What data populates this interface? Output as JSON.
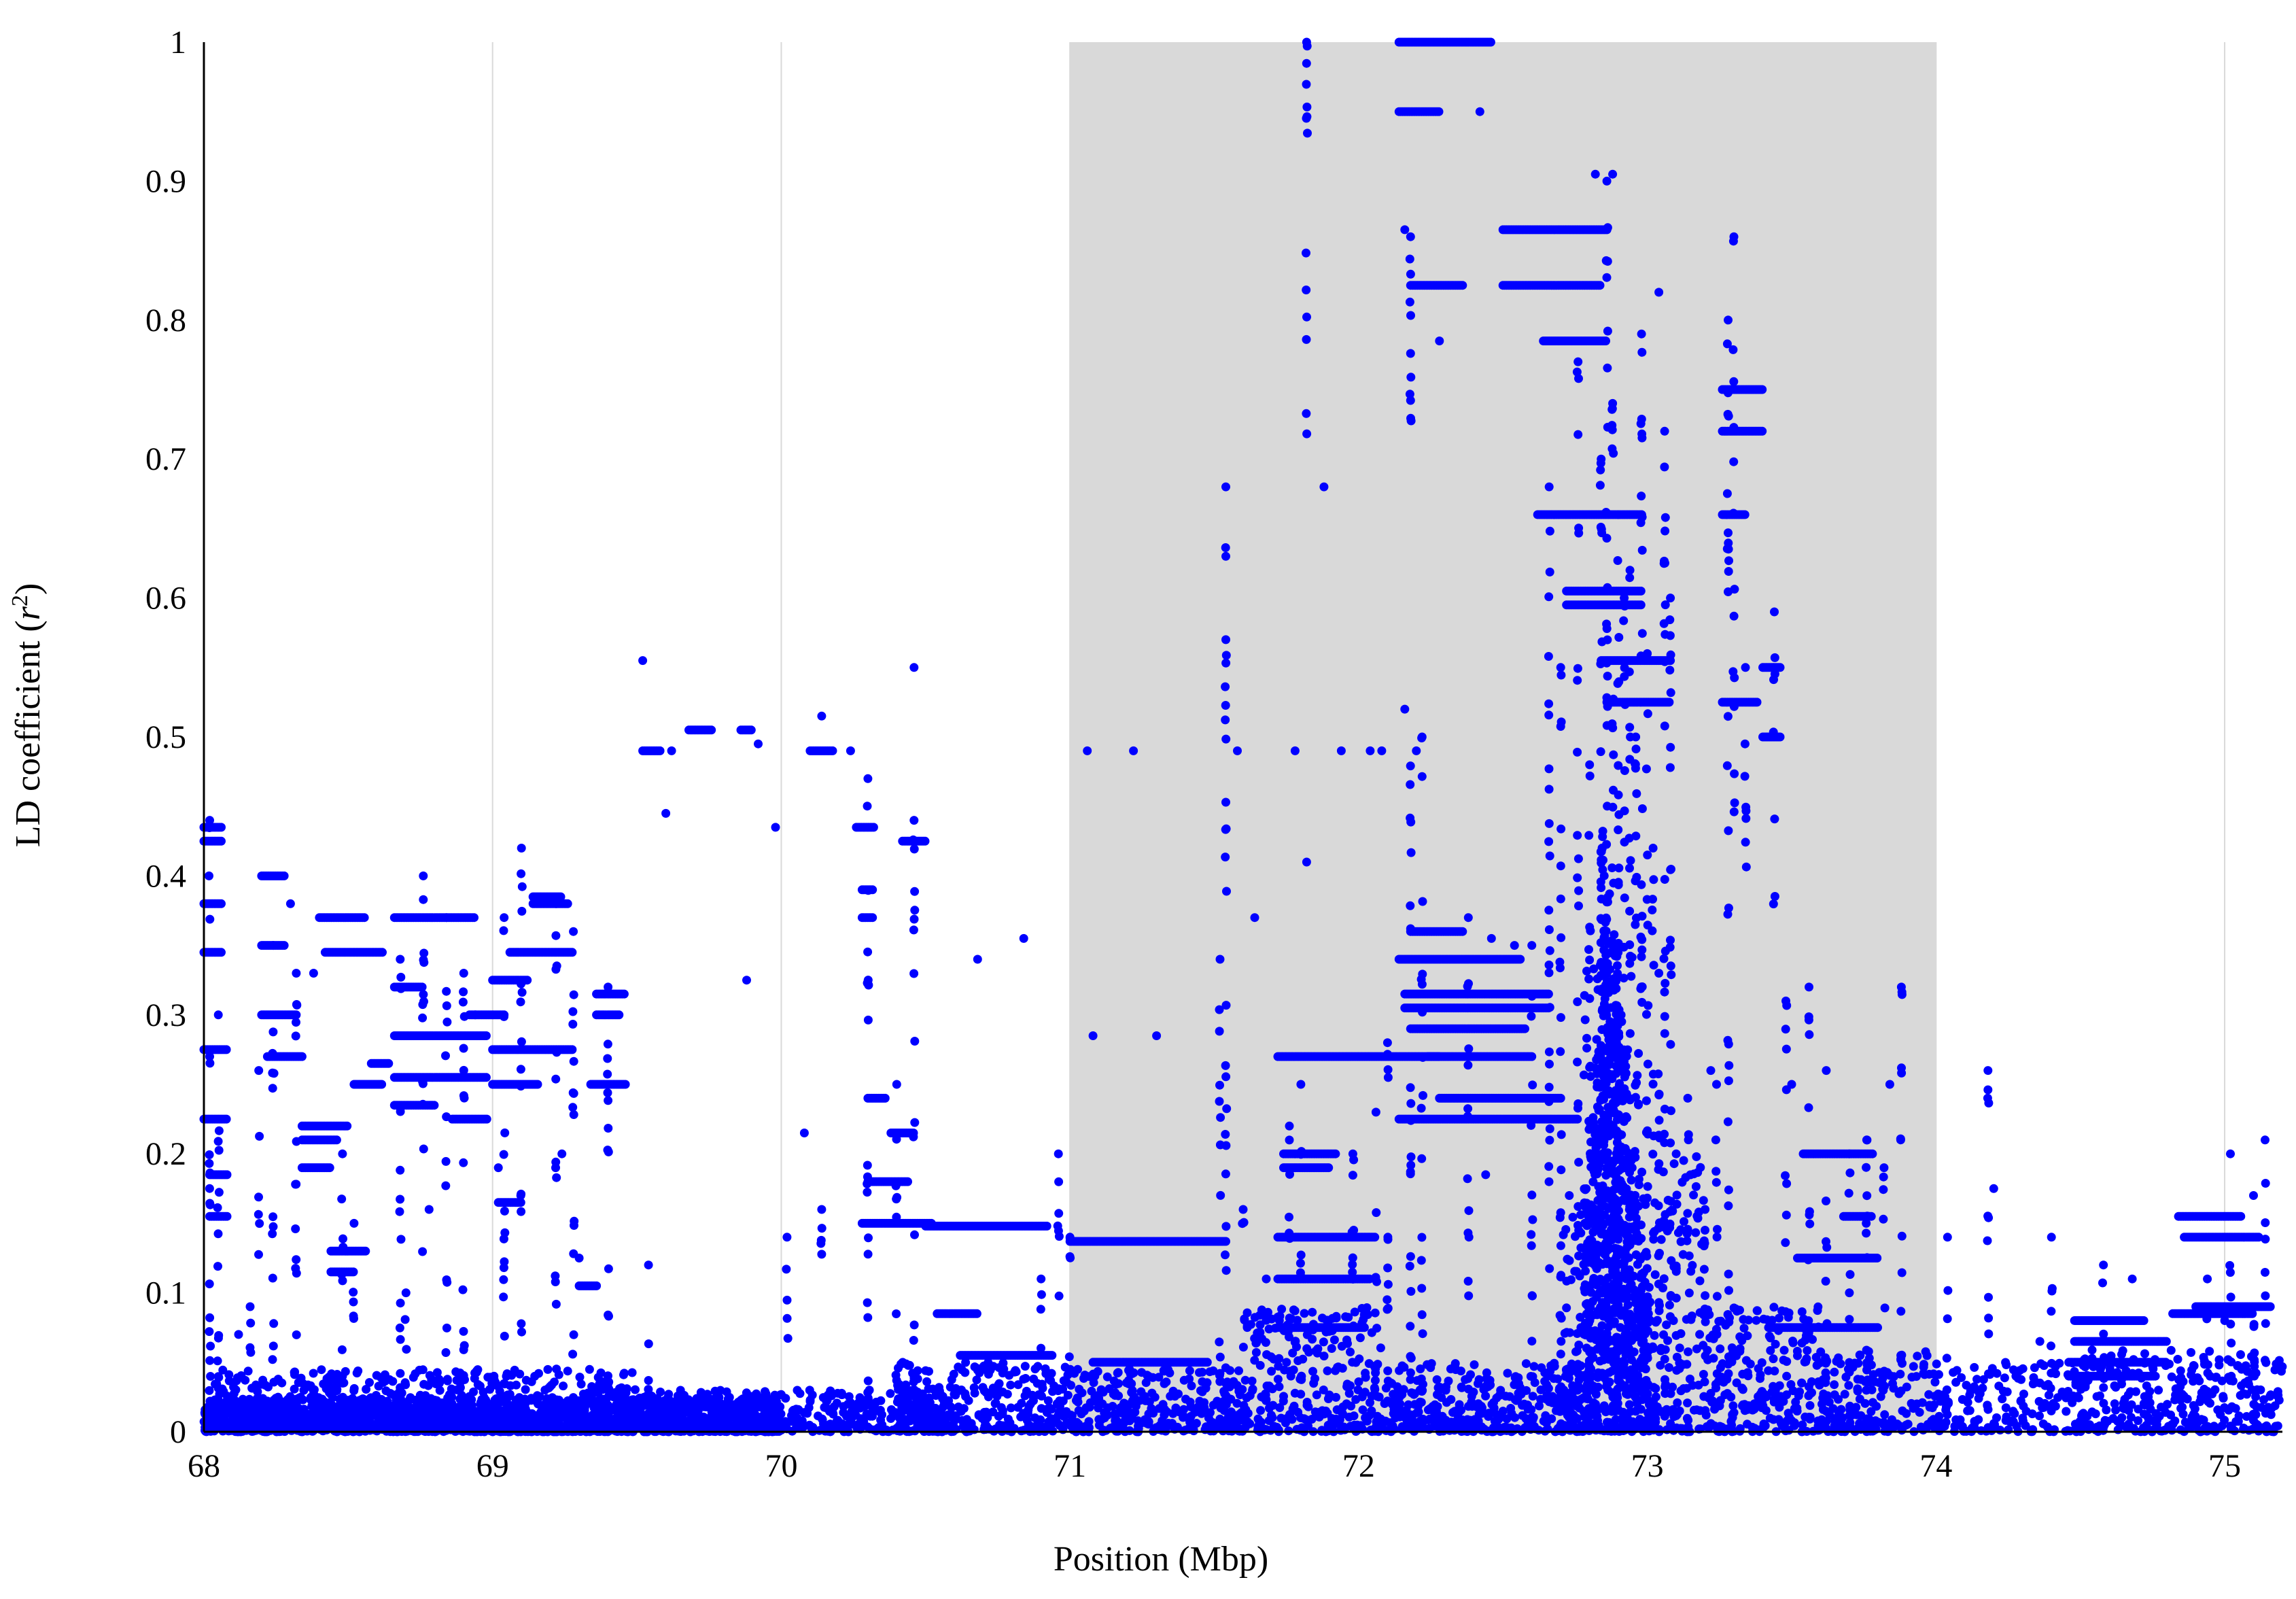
{
  "chart_data": {
    "type": "scatter",
    "xlabel": "Position (Mbp)",
    "ylabel_main": "LD coefficient (",
    "ylabel_var": "r",
    "ylabel_sup": "2",
    "ylabel_close": ")",
    "xlim": [
      68,
      75.2
    ],
    "ylim": [
      0,
      1
    ],
    "x_ticks": [
      "68",
      "69",
      "70",
      "71",
      "72",
      "73",
      "74",
      "75"
    ],
    "y_ticks": [
      "0",
      "0.1",
      "0.2",
      "0.3",
      "0.4",
      "0.5",
      "0.6",
      "0.7",
      "0.8",
      "0.9",
      "1"
    ],
    "grid": "vertical",
    "legend": "none",
    "highlight_region": {
      "x_start": 71,
      "x_end": 74,
      "color": "#d9d9d9"
    },
    "marker_color": "#0000ff",
    "gridline_color": "#d9d9d9",
    "runs": [
      [
        68.0,
        68.06,
        0.435
      ],
      [
        68.0,
        68.06,
        0.425
      ],
      [
        68.0,
        68.06,
        0.38
      ],
      [
        68.0,
        68.06,
        0.345
      ],
      [
        68.0,
        68.08,
        0.275
      ],
      [
        68.0,
        68.08,
        0.225
      ],
      [
        68.02,
        68.08,
        0.185
      ],
      [
        68.02,
        68.08,
        0.155
      ],
      [
        68.2,
        68.28,
        0.4
      ],
      [
        68.2,
        68.28,
        0.35
      ],
      [
        68.2,
        68.32,
        0.3
      ],
      [
        68.22,
        68.34,
        0.27
      ],
      [
        68.34,
        68.5,
        0.22
      ],
      [
        68.34,
        68.46,
        0.21
      ],
      [
        68.34,
        68.44,
        0.19
      ],
      [
        68.4,
        68.56,
        0.37
      ],
      [
        68.42,
        68.62,
        0.345
      ],
      [
        68.44,
        68.56,
        0.13
      ],
      [
        68.44,
        68.52,
        0.115
      ],
      [
        68.52,
        68.62,
        0.25
      ],
      [
        68.58,
        68.64,
        0.265
      ],
      [
        68.66,
        68.94,
        0.37
      ],
      [
        68.66,
        68.76,
        0.32
      ],
      [
        68.66,
        68.98,
        0.285
      ],
      [
        68.66,
        68.98,
        0.255
      ],
      [
        68.66,
        68.8,
        0.235
      ],
      [
        68.86,
        68.98,
        0.225
      ],
      [
        68.92,
        69.04,
        0.3
      ],
      [
        69.02,
        69.1,
        0.165
      ],
      [
        69.0,
        69.12,
        0.325
      ],
      [
        69.0,
        69.28,
        0.275
      ],
      [
        69.0,
        69.16,
        0.25
      ],
      [
        69.06,
        69.28,
        0.345
      ],
      [
        69.14,
        69.24,
        0.385
      ],
      [
        69.14,
        69.26,
        0.38
      ],
      [
        69.36,
        69.46,
        0.315
      ],
      [
        69.36,
        69.44,
        0.3
      ],
      [
        69.34,
        69.46,
        0.25
      ],
      [
        69.3,
        69.36,
        0.105
      ],
      [
        69.52,
        69.58,
        0.49
      ],
      [
        69.68,
        69.76,
        0.505
      ],
      [
        69.86,
        69.9,
        0.505
      ],
      [
        70.1,
        70.18,
        0.49
      ],
      [
        70.26,
        70.32,
        0.435
      ],
      [
        70.28,
        70.32,
        0.39
      ],
      [
        70.28,
        70.32,
        0.37
      ],
      [
        70.42,
        70.5,
        0.425
      ],
      [
        70.3,
        70.36,
        0.24
      ],
      [
        70.38,
        70.46,
        0.215
      ],
      [
        70.3,
        70.44,
        0.18
      ],
      [
        70.28,
        70.52,
        0.15
      ],
      [
        70.5,
        70.92,
        0.148
      ],
      [
        70.54,
        70.68,
        0.085
      ],
      [
        70.62,
        70.94,
        0.055
      ],
      [
        71.0,
        71.54,
        0.137
      ],
      [
        71.08,
        71.48,
        0.05
      ],
      [
        71.72,
        72.28,
        0.27
      ],
      [
        71.74,
        71.92,
        0.2
      ],
      [
        71.74,
        71.9,
        0.19
      ],
      [
        71.72,
        72.06,
        0.14
      ],
      [
        71.72,
        72.04,
        0.11
      ],
      [
        71.72,
        72.02,
        0.075
      ],
      [
        72.14,
        72.46,
        1.0
      ],
      [
        72.14,
        72.28,
        0.95
      ],
      [
        72.18,
        72.36,
        0.825
      ],
      [
        72.18,
        72.36,
        0.36
      ],
      [
        72.14,
        72.56,
        0.34
      ],
      [
        72.16,
        72.66,
        0.315
      ],
      [
        72.16,
        72.66,
        0.305
      ],
      [
        72.18,
        72.58,
        0.29
      ],
      [
        72.24,
        72.6,
        0.27
      ],
      [
        72.28,
        72.7,
        0.24
      ],
      [
        72.14,
        72.76,
        0.225
      ],
      [
        72.5,
        72.86,
        0.865
      ],
      [
        72.5,
        72.84,
        0.825
      ],
      [
        72.64,
        72.86,
        0.785
      ],
      [
        72.62,
        72.98,
        0.66
      ],
      [
        72.72,
        72.98,
        0.605
      ],
      [
        72.72,
        72.98,
        0.595
      ],
      [
        72.84,
        73.08,
        0.555
      ],
      [
        72.86,
        73.08,
        0.525
      ],
      [
        73.26,
        73.4,
        0.75
      ],
      [
        73.26,
        73.4,
        0.72
      ],
      [
        73.26,
        73.34,
        0.66
      ],
      [
        73.26,
        73.38,
        0.525
      ],
      [
        73.4,
        73.46,
        0.55
      ],
      [
        73.4,
        73.46,
        0.5
      ],
      [
        73.54,
        73.78,
        0.2
      ],
      [
        73.68,
        73.78,
        0.155
      ],
      [
        73.52,
        73.8,
        0.125
      ],
      [
        73.42,
        73.8,
        0.075
      ],
      [
        74.48,
        74.72,
        0.08
      ],
      [
        74.48,
        74.8,
        0.065
      ],
      [
        74.46,
        74.8,
        0.05
      ],
      [
        74.46,
        74.76,
        0.04
      ],
      [
        74.82,
        75.1,
        0.085
      ],
      [
        74.84,
        75.06,
        0.155
      ],
      [
        74.86,
        75.12,
        0.14
      ],
      [
        74.9,
        75.16,
        0.09
      ]
    ],
    "columns": [
      [
        68.02,
        0.0,
        0.44
      ],
      [
        68.05,
        0.0,
        0.3
      ],
      [
        68.16,
        0.0,
        0.09
      ],
      [
        68.19,
        0.12,
        0.26
      ],
      [
        68.24,
        0.0,
        0.35
      ],
      [
        68.32,
        0.0,
        0.33
      ],
      [
        68.48,
        0.0,
        0.2
      ],
      [
        68.52,
        0.0,
        0.15
      ],
      [
        68.68,
        0.0,
        0.34
      ],
      [
        68.7,
        0.0,
        0.1
      ],
      [
        68.76,
        0.0,
        0.4
      ],
      [
        68.84,
        0.0,
        0.37
      ],
      [
        68.9,
        0.0,
        0.33
      ],
      [
        69.04,
        0.0,
        0.37
      ],
      [
        69.1,
        0.0,
        0.42
      ],
      [
        69.22,
        0.0,
        0.38
      ],
      [
        69.28,
        0.0,
        0.36
      ],
      [
        69.4,
        0.0,
        0.32
      ],
      [
        69.54,
        0.0,
        0.12
      ],
      [
        70.02,
        0.0,
        0.14
      ],
      [
        70.14,
        0.0,
        0.16
      ],
      [
        70.3,
        0.0,
        0.47
      ],
      [
        70.4,
        0.0,
        0.25
      ],
      [
        70.46,
        0.0,
        0.44
      ],
      [
        70.9,
        0.0,
        0.11
      ],
      [
        70.96,
        0.0,
        0.2
      ],
      [
        71.0,
        0.0,
        0.14
      ],
      [
        71.52,
        0.0,
        0.34
      ],
      [
        71.54,
        0.0,
        0.68
      ],
      [
        71.6,
        0.0,
        0.16
      ],
      [
        71.68,
        0.0,
        0.11
      ],
      [
        71.76,
        0.0,
        0.22
      ],
      [
        71.8,
        0.0,
        0.25
      ],
      [
        71.82,
        0.65,
        1.0
      ],
      [
        71.98,
        0.0,
        0.2
      ],
      [
        72.06,
        0.0,
        0.23
      ],
      [
        72.1,
        0.0,
        0.28
      ],
      [
        72.18,
        0.0,
        0.86
      ],
      [
        72.22,
        0.0,
        0.5
      ],
      [
        72.38,
        0.0,
        0.37
      ],
      [
        72.6,
        0.0,
        0.35
      ],
      [
        72.66,
        0.0,
        0.68
      ],
      [
        72.7,
        0.0,
        0.55
      ],
      [
        72.76,
        0.0,
        0.77
      ],
      [
        72.8,
        0.0,
        0.48
      ],
      [
        72.84,
        0.0,
        0.7
      ],
      [
        72.86,
        0.0,
        0.9
      ],
      [
        72.88,
        0.0,
        0.74
      ],
      [
        72.9,
        0.0,
        0.66
      ],
      [
        72.92,
        0.0,
        0.6
      ],
      [
        72.94,
        0.0,
        0.62
      ],
      [
        72.96,
        0.0,
        0.5
      ],
      [
        72.98,
        0.0,
        0.79
      ],
      [
        73.0,
        0.0,
        0.56
      ],
      [
        73.02,
        0.0,
        0.42
      ],
      [
        73.04,
        0.0,
        0.33
      ],
      [
        73.06,
        0.0,
        0.72
      ],
      [
        73.08,
        0.0,
        0.6
      ],
      [
        73.1,
        0.0,
        0.2
      ],
      [
        73.14,
        0.0,
        0.24
      ],
      [
        73.2,
        0.0,
        0.16
      ],
      [
        73.24,
        0.0,
        0.25
      ],
      [
        73.28,
        0.0,
        0.8
      ],
      [
        73.3,
        0.44,
        0.86
      ],
      [
        73.34,
        0.37,
        0.55
      ],
      [
        73.44,
        0.37,
        0.59
      ],
      [
        73.48,
        0.0,
        0.31
      ],
      [
        73.56,
        0.0,
        0.32
      ],
      [
        73.62,
        0.0,
        0.26
      ],
      [
        73.7,
        0.0,
        0.2
      ],
      [
        73.76,
        0.0,
        0.21
      ],
      [
        73.82,
        0.0,
        0.19
      ],
      [
        73.88,
        0.0,
        0.32
      ],
      [
        74.04,
        0.0,
        0.14
      ],
      [
        74.18,
        0.0,
        0.26
      ],
      [
        74.4,
        0.0,
        0.14
      ],
      [
        74.58,
        0.0,
        0.12
      ],
      [
        74.94,
        0.0,
        0.11
      ],
      [
        75.02,
        0.0,
        0.2
      ],
      [
        75.1,
        0.0,
        0.17
      ],
      [
        75.14,
        0.0,
        0.21
      ]
    ],
    "isolated": [
      [
        68.02,
        0.27
      ],
      [
        68.12,
        0.07
      ],
      [
        68.3,
        0.38
      ],
      [
        68.38,
        0.33
      ],
      [
        68.48,
        0.04
      ],
      [
        68.78,
        0.16
      ],
      [
        68.94,
        0.3
      ],
      [
        69.02,
        0.19
      ],
      [
        69.24,
        0.2
      ],
      [
        69.3,
        0.125
      ],
      [
        69.52,
        0.555
      ],
      [
        69.6,
        0.445
      ],
      [
        69.62,
        0.49
      ],
      [
        69.88,
        0.325
      ],
      [
        69.92,
        0.495
      ],
      [
        69.98,
        0.435
      ],
      [
        70.08,
        0.215
      ],
      [
        70.14,
        0.515
      ],
      [
        70.24,
        0.49
      ],
      [
        70.46,
        0.55
      ],
      [
        70.68,
        0.34
      ],
      [
        70.84,
        0.355
      ],
      [
        71.06,
        0.49
      ],
      [
        71.08,
        0.285
      ],
      [
        71.22,
        0.49
      ],
      [
        71.3,
        0.285
      ],
      [
        71.54,
        0.57
      ],
      [
        71.54,
        0.63
      ],
      [
        71.58,
        0.49
      ],
      [
        71.64,
        0.37
      ],
      [
        71.78,
        0.49
      ],
      [
        71.82,
        0.41
      ],
      [
        71.88,
        0.68
      ],
      [
        71.94,
        0.49
      ],
      [
        72.04,
        0.49
      ],
      [
        72.08,
        0.49
      ],
      [
        72.16,
        0.52
      ],
      [
        72.2,
        0.49
      ],
      [
        72.16,
        0.865
      ],
      [
        72.28,
        0.785
      ],
      [
        72.42,
        0.95
      ],
      [
        72.46,
        0.355
      ],
      [
        72.44,
        0.185
      ],
      [
        72.54,
        0.35
      ],
      [
        72.88,
        0.905
      ],
      [
        72.82,
        0.905
      ],
      [
        73.04,
        0.82
      ],
      [
        73.22,
        0.26
      ],
      [
        73.5,
        0.25
      ],
      [
        73.7,
        0.1
      ],
      [
        73.84,
        0.25
      ],
      [
        74.2,
        0.175
      ],
      [
        74.36,
        0.065
      ],
      [
        74.68,
        0.11
      ],
      [
        75.0,
        0.08
      ]
    ],
    "band_segments": [
      [
        68.0,
        69.5,
        0.0,
        0.045,
        0.5
      ],
      [
        68.0,
        70.0,
        0.0,
        0.025,
        0.7
      ],
      [
        69.5,
        70.6,
        0.0,
        0.03,
        0.45
      ],
      [
        70.4,
        71.0,
        0.0,
        0.05,
        0.5
      ],
      [
        71.0,
        71.6,
        0.0,
        0.045,
        0.55
      ],
      [
        71.6,
        72.1,
        0.0,
        0.09,
        0.6
      ],
      [
        72.1,
        72.8,
        0.0,
        0.05,
        0.6
      ],
      [
        72.7,
        72.8,
        0.0,
        0.17,
        0.7
      ],
      [
        72.78,
        72.98,
        0.0,
        0.35,
        0.9
      ],
      [
        72.98,
        73.2,
        0.0,
        0.2,
        0.8
      ],
      [
        73.2,
        73.6,
        0.0,
        0.09,
        0.6
      ],
      [
        73.6,
        74.0,
        0.0,
        0.06,
        0.5
      ],
      [
        74.0,
        74.5,
        0.0,
        0.05,
        0.35
      ],
      [
        74.5,
        75.2,
        0.0,
        0.06,
        0.5
      ]
    ],
    "core_columns": [
      [
        72.85,
        0.0,
        0.44
      ],
      [
        72.87,
        0.0,
        0.39
      ],
      [
        72.89,
        0.0,
        0.36
      ],
      [
        72.9,
        0.0,
        0.32
      ],
      [
        72.92,
        0.0,
        0.26
      ],
      [
        72.83,
        0.0,
        0.28
      ],
      [
        72.81,
        0.0,
        0.24
      ],
      [
        72.94,
        0.0,
        0.2
      ],
      [
        72.96,
        0.0,
        0.17
      ],
      [
        72.79,
        0.0,
        0.18
      ],
      [
        72.98,
        0.0,
        0.12
      ],
      [
        73.0,
        0.0,
        0.1
      ]
    ]
  }
}
